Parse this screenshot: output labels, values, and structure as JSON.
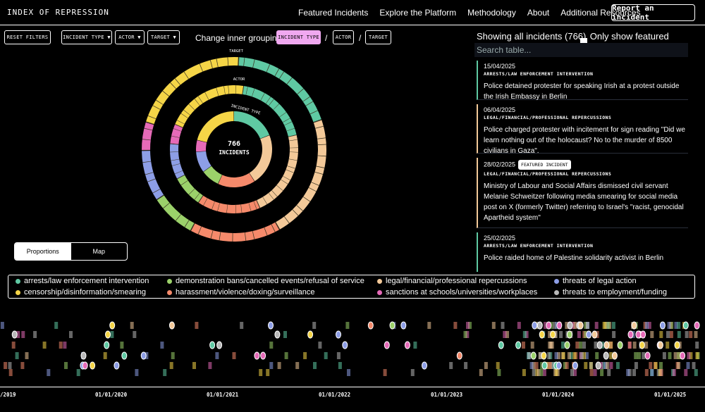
{
  "header": {
    "brand": "INDEX OF REPRESSION",
    "nav": [
      "Featured Incidents",
      "Explore the Platform",
      "Methodology",
      "About",
      "Additional Resources"
    ],
    "report_button": "Report an incident"
  },
  "filters": {
    "reset": "RESET FILTERS",
    "incident_type": "INCIDENT TYPE ▼",
    "actor": "ACTOR ▼",
    "target": "TARGET ▼",
    "grouping_label": "Change inner grouping",
    "grouping_options": [
      "INCIDENT TYPE",
      "ACTOR",
      "TARGET"
    ],
    "separators": [
      "/",
      "/"
    ]
  },
  "sunburst": {
    "center_count": "766",
    "center_label": "INCIDENTS",
    "ring_labels": [
      "TARGET",
      "ACTOR",
      "INCIDENT TYPE"
    ],
    "inner_proportions": [
      {
        "category": "arrests/law enforcement intervention",
        "share": 0.19
      },
      {
        "category": "legal/financial/professional repercussions",
        "share": 0.22
      },
      {
        "category": "harassment/violence/doxing/surveillance",
        "share": 0.16
      },
      {
        "category": "demonstration bans/cancelled events/refusal of service",
        "share": 0.08
      },
      {
        "category": "threats of legal action",
        "share": 0.09
      },
      {
        "category": "sanctions at schools/universities/workplaces",
        "share": 0.05
      },
      {
        "category": "censorship/disinformation/smearing",
        "share": 0.21
      }
    ]
  },
  "view_toggle": {
    "proportions": "Proportions",
    "map": "Map",
    "selected": "Proportions"
  },
  "table": {
    "showing": "Showing all incidents (766)",
    "featured_only": "Only show featured incidents",
    "search_placeholder": "Search table...",
    "incidents": [
      {
        "date": "15/04/2025",
        "category": "ARRESTS/LAW ENFORCEMENT INTERVENTION",
        "featured": "",
        "description": "Police detained protester for speaking Irish at a protest outside the Irish Embassy in Berlin",
        "color": "#5fc9a3"
      },
      {
        "date": "06/04/2025",
        "category": "LEGAL/FINANCIAL/PROFESSIONAL REPERCUSSIONS",
        "featured": "",
        "description": "Police charged protester with incitement for sign reading \"Did we learn nothing out of the holocaust? No to the murder of 8500 civilians in Gaza\".",
        "color": "#f3c999"
      },
      {
        "date": "28/02/2025",
        "category": "LEGAL/FINANCIAL/PROFESSIONAL REPERCUSSIONS",
        "featured": "FEATURED INCIDENT",
        "description": "Ministry of Labour and Social Affairs dismissed civil servant Melanie Schweitzer following media smearing for social media post on X (formerly Twitter) referring to Israel's \"racist, genocidal Apartheid system\"",
        "color": "#f3c999"
      },
      {
        "date": "25/02/2025",
        "category": "ARRESTS/LAW ENFORCEMENT INTERVENTION",
        "featured": "",
        "description": "Police raided home of Palestine solidarity activist in Berlin",
        "color": "#5fc9a3"
      }
    ]
  },
  "legend": [
    {
      "label": "arrests/law enforcement intervention",
      "color": "#5fc9a3"
    },
    {
      "label": "demonstration bans/cancelled events/refusal of service",
      "color": "#9bd16a"
    },
    {
      "label": "legal/financial/professional repercussions",
      "color": "#f3c999"
    },
    {
      "label": "threats of legal action",
      "color": "#8d9ee6"
    },
    {
      "label": "censorship/disinformation/smearing",
      "color": "#f5d547"
    },
    {
      "label": "harassment/violence/doxing/surveillance",
      "color": "#f58a6b"
    },
    {
      "label": "sanctions at schools/universities/workplaces",
      "color": "#e66ab8"
    },
    {
      "label": "threats to employment/funding",
      "color": "#b8b8b8"
    }
  ],
  "timeline": {
    "ticks": [
      "/2019",
      "01/01/2020",
      "01/01/2021",
      "01/01/2022",
      "01/01/2023",
      "01/01/2024",
      "01/01/2025"
    ]
  }
}
